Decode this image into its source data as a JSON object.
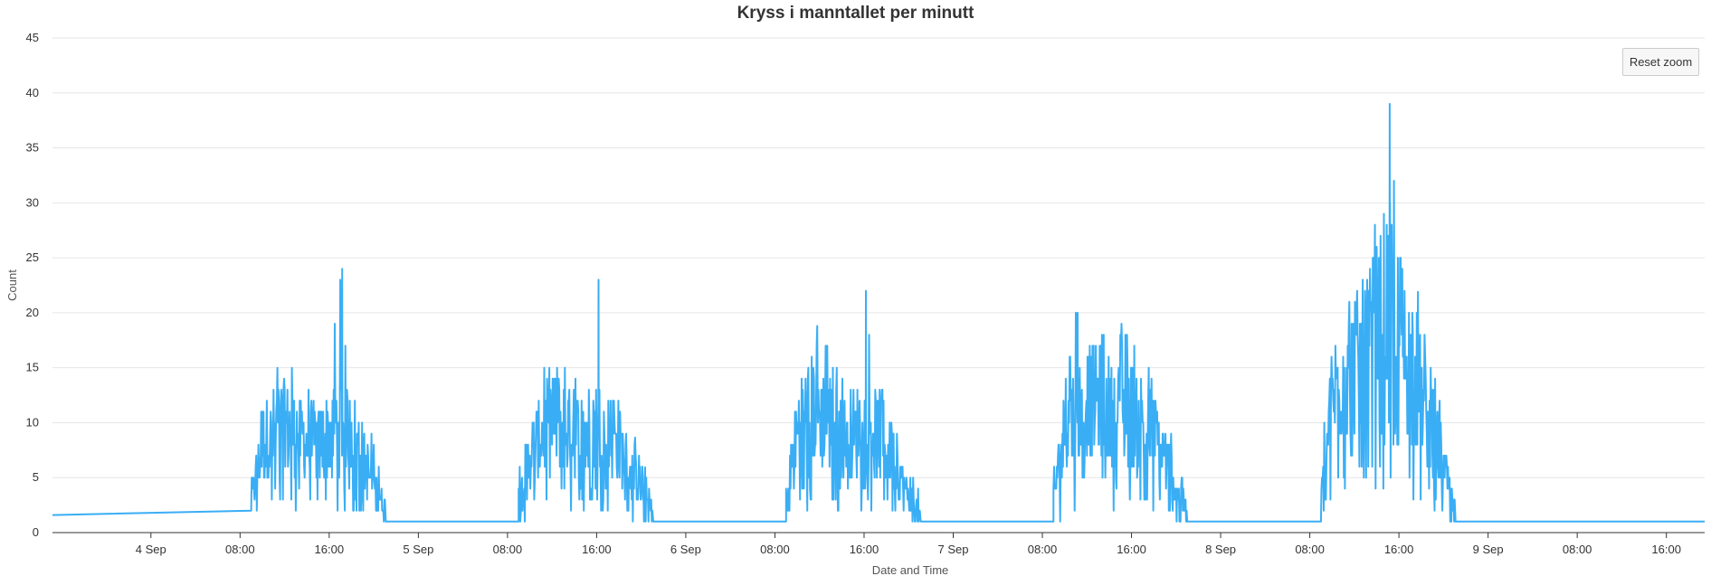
{
  "colors": {
    "series": "#3aaef5",
    "grid": "#e6e6e6",
    "axis": "#333333"
  },
  "reset_zoom_label": "Reset zoom",
  "chart_data": {
    "type": "line",
    "title": "Kryss i manntallet per minutt",
    "xlabel": "Date and Time",
    "ylabel": "Count",
    "ylim": [
      0,
      45
    ],
    "yticks": [
      0,
      5,
      10,
      15,
      20,
      25,
      30,
      35,
      40,
      45
    ],
    "xlim": [
      "2023-09-03 15:10",
      "2023-09-09 17:00"
    ],
    "xticks": [
      {
        "t": "2023-09-04 00:00",
        "label": "4 Sep"
      },
      {
        "t": "2023-09-04 08:00",
        "label": "08:00"
      },
      {
        "t": "2023-09-04 16:00",
        "label": "16:00"
      },
      {
        "t": "2023-09-05 00:00",
        "label": "5 Sep"
      },
      {
        "t": "2023-09-05 08:00",
        "label": "08:00"
      },
      {
        "t": "2023-09-05 16:00",
        "label": "16:00"
      },
      {
        "t": "2023-09-06 00:00",
        "label": "6 Sep"
      },
      {
        "t": "2023-09-06 08:00",
        "label": "08:00"
      },
      {
        "t": "2023-09-06 16:00",
        "label": "16:00"
      },
      {
        "t": "2023-09-07 00:00",
        "label": "7 Sep"
      },
      {
        "t": "2023-09-07 08:00",
        "label": "08:00"
      },
      {
        "t": "2023-09-07 16:00",
        "label": "16:00"
      },
      {
        "t": "2023-09-08 00:00",
        "label": "8 Sep"
      },
      {
        "t": "2023-09-08 08:00",
        "label": "08:00"
      },
      {
        "t": "2023-09-08 16:00",
        "label": "16:00"
      },
      {
        "t": "2023-09-09 00:00",
        "label": "9 Sep"
      },
      {
        "t": "2023-09-09 08:00",
        "label": "08:00"
      },
      {
        "t": "2023-09-09 16:00",
        "label": "16:00"
      }
    ],
    "baseline_segments": [
      {
        "x": [
          "2023-09-03 15:10",
          "2023-09-04 09:00"
        ],
        "y": [
          1.6,
          2
        ]
      }
    ],
    "active_periods": [
      {
        "x": [
          "2023-09-04 09:00",
          "2023-09-04 10:00",
          "2023-09-04 11:00",
          "2023-09-04 12:00",
          "2023-09-04 13:00",
          "2023-09-04 14:00",
          "2023-09-04 15:00",
          "2023-09-04 16:00",
          "2023-09-04 17:00",
          "2023-09-04 18:00",
          "2023-09-04 19:00",
          "2023-09-04 20:00",
          "2023-09-04 21:00"
        ],
        "mean": [
          3,
          8,
          9,
          10,
          9,
          8,
          8,
          9,
          10,
          9,
          7,
          4,
          2
        ],
        "peak": [
          5,
          13,
          15,
          19,
          14,
          13,
          15,
          17,
          24,
          13,
          11,
          10,
          3
        ]
      },
      {
        "x": [
          "2023-09-05 09:00",
          "2023-09-05 10:00",
          "2023-09-05 11:00",
          "2023-09-05 12:00",
          "2023-09-05 13:00",
          "2023-09-05 14:00",
          "2023-09-05 15:00",
          "2023-09-05 16:00",
          "2023-09-05 17:00",
          "2023-09-05 18:00",
          "2023-09-05 19:00",
          "2023-09-05 20:00",
          "2023-09-05 21:00"
        ],
        "mean": [
          3,
          7,
          9,
          10,
          10,
          9,
          9,
          10,
          9,
          8,
          6,
          4,
          2
        ],
        "peak": [
          6,
          12,
          16,
          15,
          16,
          14,
          15,
          23,
          14,
          12,
          10,
          7,
          4
        ]
      },
      {
        "x": [
          "2023-09-06 09:00",
          "2023-09-06 10:00",
          "2023-09-06 11:00",
          "2023-09-06 12:00",
          "2023-09-06 13:00",
          "2023-09-06 14:00",
          "2023-09-06 15:00",
          "2023-09-06 16:00",
          "2023-09-06 17:00",
          "2023-09-06 18:00",
          "2023-09-06 19:00",
          "2023-09-06 20:00",
          "2023-09-06 21:00"
        ],
        "mean": [
          3,
          9,
          11,
          11,
          10,
          9,
          9,
          10,
          9,
          8,
          6,
          3,
          2
        ],
        "peak": [
          5,
          15,
          18,
          19,
          17,
          15,
          16,
          22,
          15,
          12,
          10,
          6,
          4
        ]
      },
      {
        "x": [
          "2023-09-07 09:00",
          "2023-09-07 10:00",
          "2023-09-07 11:00",
          "2023-09-07 12:00",
          "2023-09-07 13:00",
          "2023-09-07 14:00",
          "2023-09-07 15:00",
          "2023-09-07 16:00",
          "2023-09-07 17:00",
          "2023-09-07 18:00",
          "2023-09-07 19:00",
          "2023-09-07 20:00",
          "2023-09-07 21:00"
        ],
        "mean": [
          3,
          9,
          11,
          12,
          12,
          11,
          11,
          11,
          10,
          9,
          7,
          4,
          2
        ],
        "peak": [
          6,
          16,
          20,
          19,
          18,
          19,
          20,
          19,
          17,
          14,
          12,
          8,
          4
        ]
      },
      {
        "x": [
          "2023-09-08 09:00",
          "2023-09-08 10:00",
          "2023-09-08 11:00",
          "2023-09-08 12:00",
          "2023-09-08 13:00",
          "2023-09-08 14:00",
          "2023-09-08 15:00",
          "2023-09-08 16:00",
          "2023-09-08 17:00",
          "2023-09-08 18:00",
          "2023-09-08 19:00",
          "2023-09-08 20:00",
          "2023-09-08 21:00"
        ],
        "mean": [
          3,
          12,
          15,
          15,
          16,
          18,
          21,
          18,
          15,
          12,
          9,
          6,
          2
        ],
        "peak": [
          9,
          20,
          21,
          21,
          25,
          30,
          39,
          28,
          24,
          21,
          15,
          12,
          5
        ]
      }
    ],
    "idle_level": 1,
    "end_value": 1
  }
}
